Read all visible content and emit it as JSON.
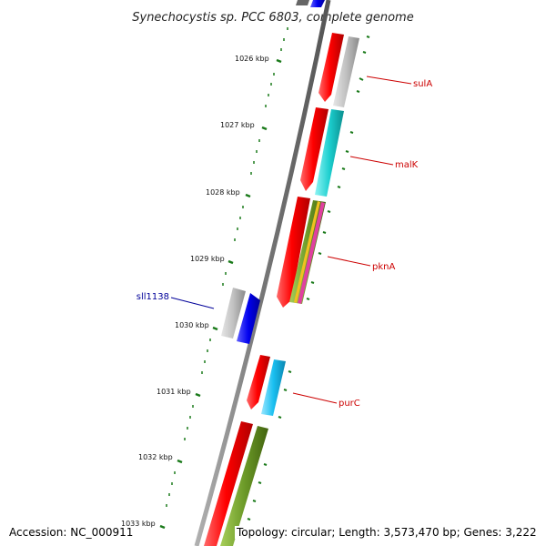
{
  "title": "Synechocystis sp. PCC 6803, complete genome",
  "footer": {
    "accession": "Accession: NC_000911",
    "topology": "Topology: circular; Length: 3,573,470 bp; Genes: 3,222"
  },
  "kbp_ticks": [
    "1026 kbp",
    "1027 kbp",
    "1028 kbp",
    "1029 kbp",
    "1030 kbp",
    "1031 kbp",
    "1032 kbp",
    "1033 kbp"
  ],
  "gene_labels": [
    {
      "text": "sulA",
      "color": "#cc0000"
    },
    {
      "text": "malK",
      "color": "#cc0000"
    },
    {
      "text": "pknA",
      "color": "#cc0000"
    },
    {
      "text": "purC",
      "color": "#cc0000"
    },
    {
      "text": "sll1138",
      "color": "#000099"
    }
  ],
  "colors": {
    "backbone": "#777777",
    "tick": "#1a7a1a",
    "red": "#ee0000",
    "gray": "#bdbdbd",
    "cyan": "#20d4d4",
    "lightblue": "#1cc3f0",
    "blue": "#1010dd",
    "olive": "#6e9a2a"
  }
}
